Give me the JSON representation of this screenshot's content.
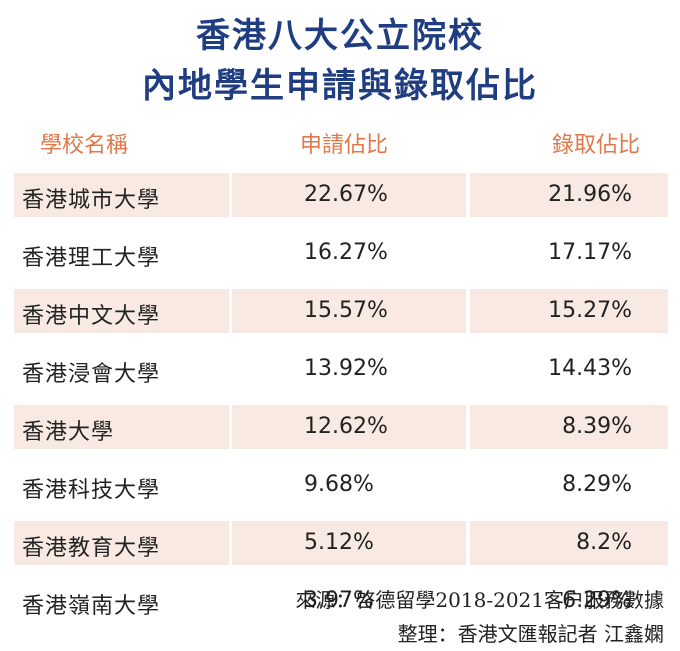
{
  "title_line1": "香港八大公立院校",
  "title_line2": "內地學生申請與錄取佔比",
  "source_line1": "來源：啓德留學2018-2021客户服務數據",
  "source_line2": "整理：香港文匯報記者 江鑫嫻",
  "chart_data": {
    "type": "table",
    "columns": [
      "學校名稱",
      "申請佔比",
      "錄取佔比"
    ],
    "rows": [
      {
        "school": "香港城市大學",
        "apply": "22.67%",
        "admit": "21.96%"
      },
      {
        "school": "香港理工大學",
        "apply": "16.27%",
        "admit": "17.17%"
      },
      {
        "school": "香港中文大學",
        "apply": "15.57%",
        "admit": "15.27%"
      },
      {
        "school": "香港浸會大學",
        "apply": "13.92%",
        "admit": "14.43%"
      },
      {
        "school": "香港大學",
        "apply": "12.62%",
        "admit": "8.39%"
      },
      {
        "school": "香港科技大學",
        "apply": "9.68%",
        "admit": "8.29%"
      },
      {
        "school": "香港教育大學",
        "apply": "5.12%",
        "admit": "8.2%"
      },
      {
        "school": "香港嶺南大學",
        "apply": "3.97%",
        "admit": "6.29%"
      }
    ]
  }
}
